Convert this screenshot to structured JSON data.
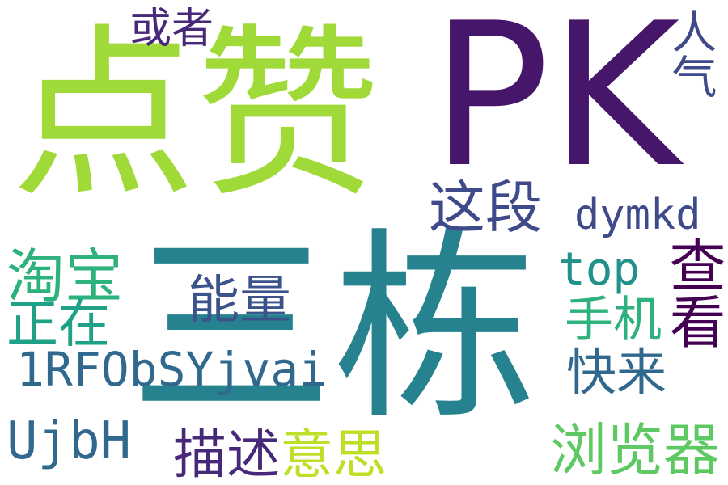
{
  "words": [
    {
      "id": "w-dianzan",
      "text": "点赞",
      "color": "#a0da39"
    },
    {
      "id": "w-pk",
      "text": "PK",
      "color": "#46166b"
    },
    {
      "id": "w-sandong",
      "text": "三栋",
      "color": "#26828e"
    },
    {
      "id": "w-huozhe",
      "text": "或者",
      "color": "#482878"
    },
    {
      "id": "w-renqi",
      "text": "人气",
      "color": "#3e4a89"
    },
    {
      "id": "w-zheduan",
      "text": "这段",
      "color": "#3e4a89"
    },
    {
      "id": "w-dymkd",
      "text": "dymkd",
      "color": "#3e4a89"
    },
    {
      "id": "w-chakan",
      "text": "查看",
      "color": "#440154"
    },
    {
      "id": "w-taobao",
      "text": "淘宝",
      "color": "#2db27d"
    },
    {
      "id": "w-top",
      "text": "top",
      "color": "#21918c"
    },
    {
      "id": "w-nengliang",
      "text": "能量",
      "color": "#3b528b"
    },
    {
      "id": "w-zhengzai",
      "text": "正在",
      "color": "#1fa187"
    },
    {
      "id": "w-shouji",
      "text": "手机",
      "color": "#2db27d"
    },
    {
      "id": "w-1rf",
      "text": "1RFObSYjvai",
      "color": "#31688e"
    },
    {
      "id": "w-kuailai",
      "text": "快来",
      "color": "#31688e"
    },
    {
      "id": "w-ujbh",
      "text": "UjbH",
      "color": "#31688e"
    },
    {
      "id": "w-miaoshu",
      "text": "描述",
      "color": "#482878"
    },
    {
      "id": "w-yisi",
      "text": "意思",
      "color": "#bddf26"
    },
    {
      "id": "w-liulanqi",
      "text": "浏览器",
      "color": "#5ec962"
    }
  ]
}
